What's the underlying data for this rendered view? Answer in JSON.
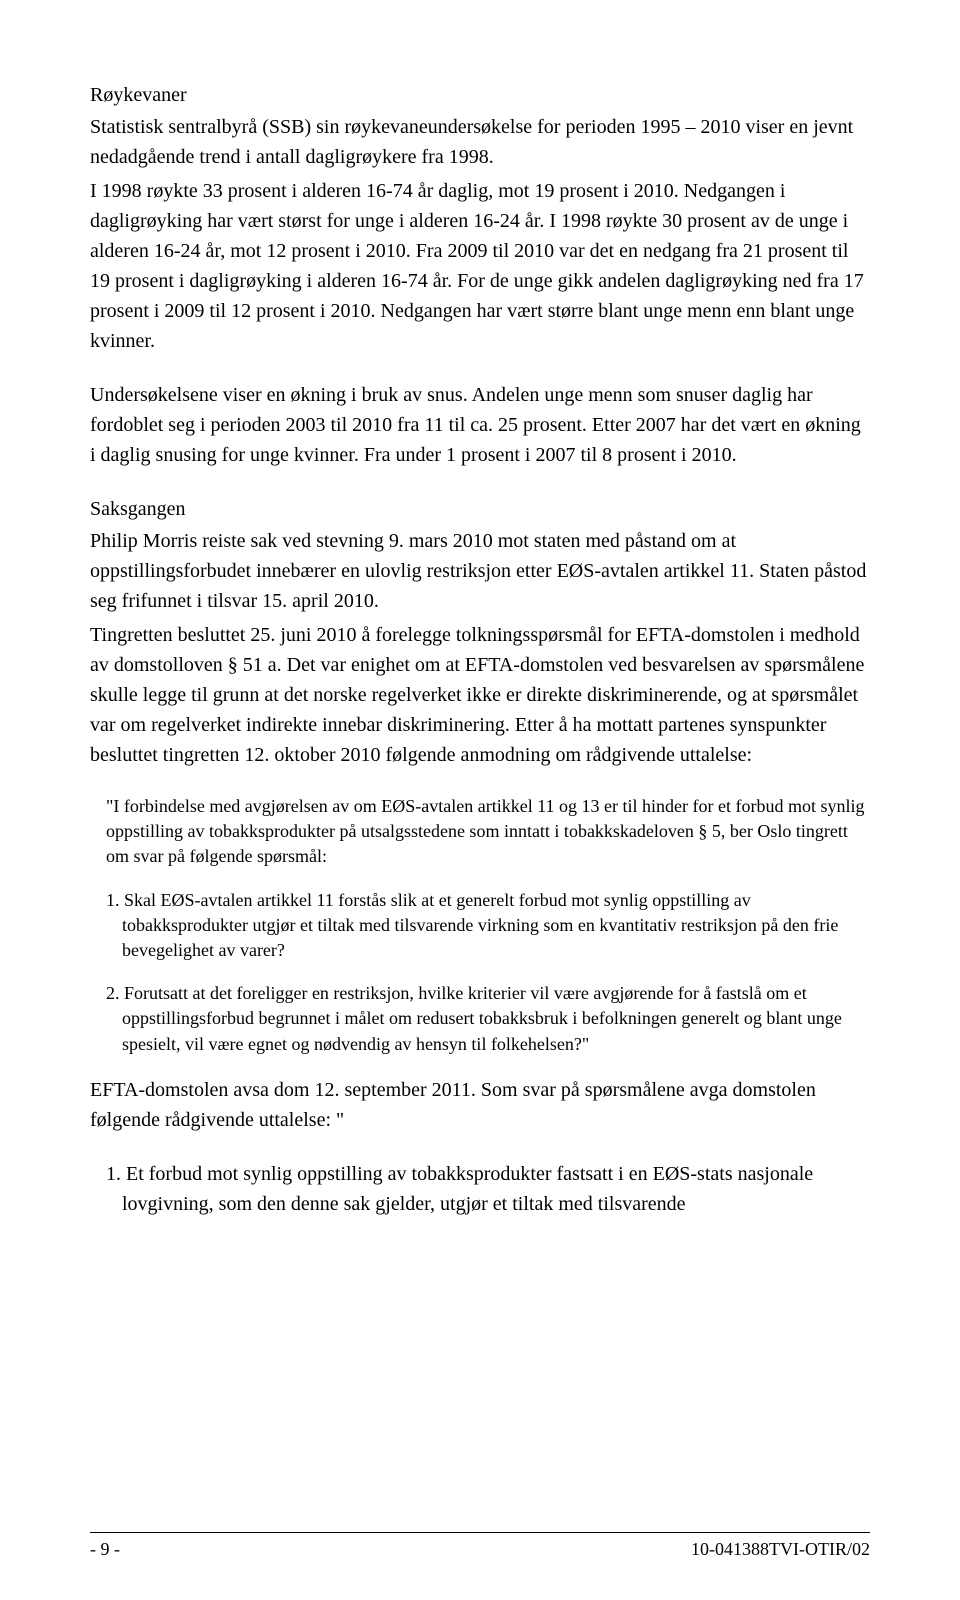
{
  "section1": {
    "heading": "Røykevaner",
    "para1": "Statistisk sentralbyrå (SSB) sin røykevaneundersøkelse for perioden 1995 – 2010 viser en jevnt nedadgående trend i antall dagligrøykere fra 1998.",
    "para2": "I 1998 røykte 33 prosent i alderen 16-74 år daglig, mot 19 prosent i 2010. Nedgangen i dagligrøyking har vært størst for unge i alderen 16-24 år. I 1998 røykte 30 prosent av de unge i alderen 16-24 år, mot 12 prosent i 2010. Fra 2009 til 2010 var det en nedgang fra 21 prosent til 19 prosent i dagligrøyking i alderen 16-74 år. For de unge gikk andelen dagligrøyking ned fra 17 prosent i 2009 til 12 prosent i 2010. Nedgangen har vært større blant unge menn enn blant unge kvinner.",
    "para3": "Undersøkelsene viser en økning i bruk av snus. Andelen unge menn som snuser daglig har fordoblet seg i perioden 2003 til 2010 fra 11 til ca. 25 prosent. Etter 2007 har det vært en økning i daglig snusing for unge kvinner. Fra under 1 prosent i 2007 til 8 prosent i 2010."
  },
  "section2": {
    "heading": "Saksgangen",
    "para1": "Philip Morris reiste sak ved stevning 9. mars 2010 mot staten med påstand om at oppstillingsforbudet innebærer en ulovlig restriksjon etter EØS-avtalen artikkel 11. Staten påstod seg frifunnet i tilsvar 15. april 2010.",
    "para2": "Tingretten besluttet 25. juni 2010 å forelegge tolkningsspørsmål for EFTA-domstolen i medhold av domstolloven § 51 a. Det var enighet om at EFTA-domstolen ved besvarelsen av spørsmålene skulle legge til grunn at det norske regelverket ikke er direkte diskriminerende, og at spørsmålet var om regelverket indirekte innebar diskriminering. Etter å ha mottatt partenes synspunkter besluttet tingretten 12. oktober 2010 følgende anmodning om rådgivende uttalelse:"
  },
  "quote": {
    "intro": "\"I forbindelse med avgjørelsen av om EØS-avtalen artikkel 11 og 13 er til hinder for et forbud mot synlig oppstilling av tobakksprodukter på utsalgsstedene som inntatt i tobakkskadeloven § 5, ber Oslo tingrett om svar på følgende spørsmål:",
    "q1": "1.  Skal EØS-avtalen artikkel 11 forstås slik at et generelt forbud mot synlig oppstilling av tobakksprodukter utgjør et tiltak med tilsvarende virkning som en kvantitativ restriksjon på den frie bevegelighet av varer?",
    "q2": "2.  Forutsatt at det foreligger en restriksjon, hvilke kriterier vil være avgjørende for å fastslå om et oppstillingsforbud begrunnet i målet om redusert tobakksbruk i befolkningen generelt og blant unge spesielt, vil være egnet og nødvendig av hensyn til folkehelsen?\""
  },
  "efta": {
    "para": "EFTA-domstolen avsa dom 12. september 2011. Som svar på spørsmålene avga domstolen følgende rådgivende uttalelse: \"",
    "item1": "1.  Et forbud mot synlig oppstilling av tobakksprodukter fastsatt i en EØS-stats nasjonale lovgivning, som den denne sak gjelder, utgjør et tiltak med tilsvarende"
  },
  "footer": {
    "page": "- 9 -",
    "caseNo": "10-041388TVI-OTIR/02"
  }
}
